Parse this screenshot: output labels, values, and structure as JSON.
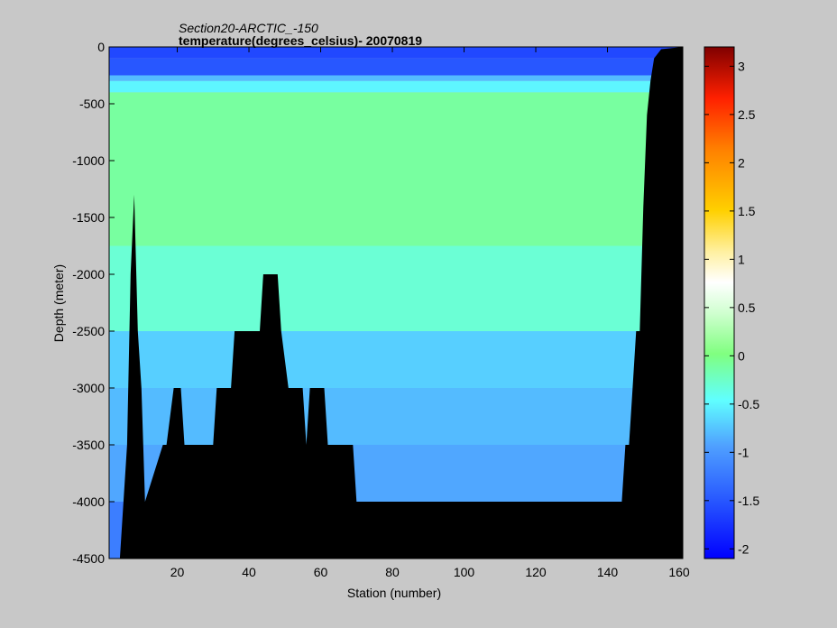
{
  "chart_data": {
    "type": "heatmap",
    "title": "Section20-ARCTIC_-150",
    "subtitle": "temperature(degrees_celsius)- 20070819",
    "xlabel": "Station (number)",
    "ylabel": "Depth (meter)",
    "xlim": [
      1,
      161
    ],
    "ylim": [
      -4500,
      0
    ],
    "x_ticks": [
      20,
      40,
      60,
      80,
      100,
      120,
      140,
      160
    ],
    "y_ticks": [
      0,
      -500,
      -1000,
      -1500,
      -2000,
      -2500,
      -3000,
      -3500,
      -4000,
      -4500
    ],
    "colorbar": {
      "range": [
        -2.1,
        3.2
      ],
      "ticks": [
        -2,
        -1.5,
        -1,
        -0.5,
        0,
        0.5,
        1,
        1.5,
        2,
        2.5,
        3
      ],
      "colormap": "jet"
    },
    "layers": [
      {
        "depth_from": 0,
        "depth_to": -100,
        "temperature": -1.6
      },
      {
        "depth_from": -100,
        "depth_to": -250,
        "temperature": -1.5
      },
      {
        "depth_from": -250,
        "depth_to": -300,
        "temperature": -0.8
      },
      {
        "depth_from": -300,
        "depth_to": -400,
        "temperature": -0.5
      },
      {
        "depth_from": -400,
        "depth_to": -1750,
        "temperature": -0.1
      },
      {
        "depth_from": -1750,
        "depth_to": -2500,
        "temperature": -0.3
      },
      {
        "depth_from": -2500,
        "depth_to": -3000,
        "temperature": -0.7
      },
      {
        "depth_from": -3000,
        "depth_to": -3500,
        "temperature": -0.8
      },
      {
        "depth_from": -3500,
        "depth_to": -4000,
        "temperature": -0.9
      },
      {
        "depth_from": -4000,
        "depth_to": -4500,
        "temperature": -1.2
      }
    ],
    "bathymetry": [
      {
        "x": 1,
        "depth": -4500
      },
      {
        "x": 4,
        "depth": -4500
      },
      {
        "x": 5,
        "depth": -4000
      },
      {
        "x": 6,
        "depth": -3500
      },
      {
        "x": 7,
        "depth": -2000
      },
      {
        "x": 8,
        "depth": -1300
      },
      {
        "x": 9,
        "depth": -2500
      },
      {
        "x": 10,
        "depth": -3000
      },
      {
        "x": 11,
        "depth": -4000
      },
      {
        "x": 16,
        "depth": -3500
      },
      {
        "x": 17,
        "depth": -3500
      },
      {
        "x": 19,
        "depth": -3000
      },
      {
        "x": 21,
        "depth": -3000
      },
      {
        "x": 22,
        "depth": -3500
      },
      {
        "x": 30,
        "depth": -3500
      },
      {
        "x": 31,
        "depth": -3000
      },
      {
        "x": 35,
        "depth": -3000
      },
      {
        "x": 36,
        "depth": -2500
      },
      {
        "x": 43,
        "depth": -2500
      },
      {
        "x": 44,
        "depth": -2000
      },
      {
        "x": 48,
        "depth": -2000
      },
      {
        "x": 49,
        "depth": -2500
      },
      {
        "x": 51,
        "depth": -3000
      },
      {
        "x": 55,
        "depth": -3000
      },
      {
        "x": 56,
        "depth": -3500
      },
      {
        "x": 57,
        "depth": -3000
      },
      {
        "x": 61,
        "depth": -3000
      },
      {
        "x": 62,
        "depth": -3500
      },
      {
        "x": 69,
        "depth": -3500
      },
      {
        "x": 70,
        "depth": -4000
      },
      {
        "x": 144,
        "depth": -4000
      },
      {
        "x": 145,
        "depth": -3500
      },
      {
        "x": 146,
        "depth": -3500
      },
      {
        "x": 147,
        "depth": -3000
      },
      {
        "x": 148,
        "depth": -2500
      },
      {
        "x": 149,
        "depth": -2500
      },
      {
        "x": 150,
        "depth": -1400
      },
      {
        "x": 151,
        "depth": -600
      },
      {
        "x": 152,
        "depth": -300
      },
      {
        "x": 153,
        "depth": -100
      },
      {
        "x": 155,
        "depth": -20
      },
      {
        "x": 161,
        "depth": 0
      }
    ]
  }
}
